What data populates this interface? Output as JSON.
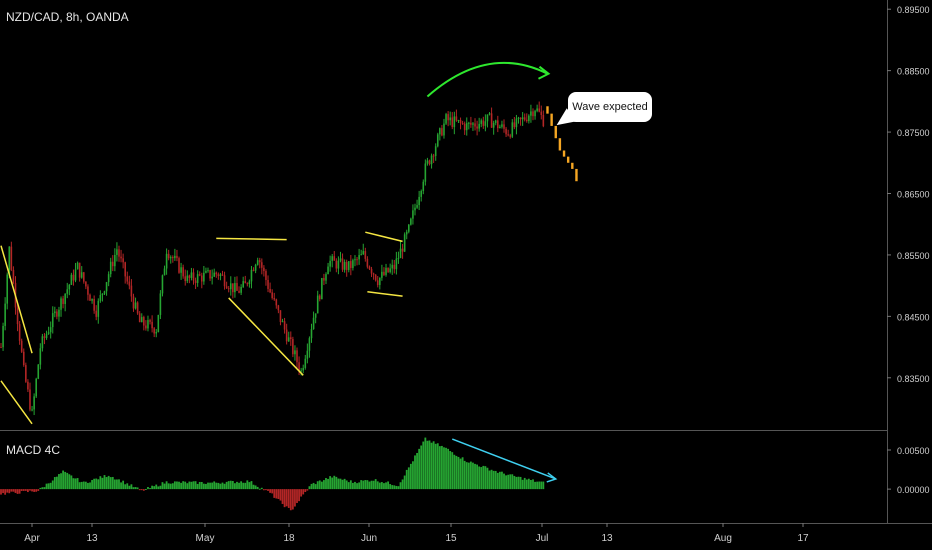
{
  "header": {
    "symbol": "NZD/CAD, 8h, OANDA"
  },
  "indicator": {
    "label": "MACD 4C"
  },
  "callout": {
    "text": "Wave expected"
  },
  "colors": {
    "up": "#26a532",
    "down": "#b32626",
    "forecast": "#f5a623",
    "pattern": "#f5e642",
    "arc": "#2ee82e",
    "divergence": "#3fd0f0"
  },
  "chart_data": {
    "type": "candlestick",
    "price_axis": {
      "ticks": [
        "0.89500",
        "0.88500",
        "0.87500",
        "0.86500",
        "0.85500",
        "0.84500",
        "0.83500"
      ],
      "tick_values": [
        0.895,
        0.885,
        0.875,
        0.865,
        0.855,
        0.845,
        0.835
      ],
      "range": [
        0.8265,
        0.8965
      ]
    },
    "macd_axis": {
      "ticks": [
        "0.00500",
        "0.00000"
      ],
      "tick_values": [
        0.005,
        0.0
      ],
      "range": [
        -0.0042,
        0.0073
      ]
    },
    "time_axis": [
      "Apr",
      "13",
      "May",
      "18",
      "Jun",
      "15",
      "Jul",
      "13",
      "Aug",
      "17"
    ],
    "price_path": [
      [
        0,
        0.84
      ],
      [
        4,
        0.856
      ],
      [
        11,
        0.836
      ],
      [
        15,
        0.829
      ],
      [
        19,
        0.84
      ],
      [
        27,
        0.846
      ],
      [
        37,
        0.853
      ],
      [
        46,
        0.846
      ],
      [
        56,
        0.856
      ],
      [
        67,
        0.844
      ],
      [
        75,
        0.843
      ],
      [
        80,
        0.856
      ],
      [
        90,
        0.851
      ],
      [
        105,
        0.852
      ],
      [
        114,
        0.849
      ],
      [
        118,
        0.85
      ],
      [
        124,
        0.855
      ],
      [
        131,
        0.848
      ],
      [
        138,
        0.842
      ],
      [
        145,
        0.836
      ],
      [
        151,
        0.845
      ],
      [
        158,
        0.854
      ],
      [
        168,
        0.853
      ],
      [
        175,
        0.855
      ],
      [
        182,
        0.851
      ],
      [
        190,
        0.853
      ],
      [
        197,
        0.859
      ],
      [
        205,
        0.869
      ],
      [
        215,
        0.877
      ],
      [
        225,
        0.876
      ],
      [
        236,
        0.877
      ],
      [
        245,
        0.875
      ],
      [
        252,
        0.877
      ],
      [
        258,
        0.879
      ],
      [
        262,
        0.877
      ]
    ],
    "forecast_closes": [
      0.878,
      0.876,
      0.874,
      0.872,
      0.871,
      0.87,
      0.869,
      0.867
    ],
    "macd_path": [
      [
        0,
        -0.0006
      ],
      [
        10,
        -0.0004
      ],
      [
        18,
        -0.0002
      ],
      [
        30,
        0.0022
      ],
      [
        40,
        0.0008
      ],
      [
        52,
        0.0018
      ],
      [
        68,
        -0.0002
      ],
      [
        80,
        0.0009
      ],
      [
        100,
        0.0008
      ],
      [
        110,
        0.0009
      ],
      [
        120,
        0.001
      ],
      [
        130,
        -0.0005
      ],
      [
        140,
        -0.0028
      ],
      [
        150,
        0.0006
      ],
      [
        160,
        0.0016
      ],
      [
        170,
        0.0009
      ],
      [
        180,
        0.0012
      ],
      [
        192,
        0.0005
      ],
      [
        205,
        0.0064
      ],
      [
        215,
        0.0052
      ],
      [
        225,
        0.0036
      ],
      [
        240,
        0.0022
      ],
      [
        250,
        0.0015
      ],
      [
        262,
        0.0008
      ]
    ],
    "annotations": [
      {
        "name": "triangle-april",
        "type": "pattern",
        "points": [
          [
            0,
            0.8565
          ],
          [
            15,
            0.839
          ],
          [
            0,
            0.8345
          ],
          [
            15,
            0.8275
          ]
        ]
      },
      {
        "name": "flag-may",
        "type": "pattern",
        "points": [
          [
            104,
            0.8577
          ],
          [
            138,
            0.8575
          ],
          [
            110,
            0.848
          ],
          [
            146,
            0.8354
          ]
        ]
      },
      {
        "name": "flag-june",
        "type": "pattern",
        "points": [
          [
            176,
            0.8587
          ],
          [
            194,
            0.8572
          ],
          [
            177,
            0.849
          ],
          [
            194,
            0.8483
          ]
        ]
      },
      {
        "name": "arc-top",
        "type": "arc",
        "from": [
          206,
          0.8808
        ],
        "to": [
          264,
          0.8845
        ]
      },
      {
        "name": "divergence",
        "type": "arrow",
        "from": [
          218,
          0.0064
        ],
        "to": [
          268,
          0.0013
        ]
      }
    ]
  }
}
